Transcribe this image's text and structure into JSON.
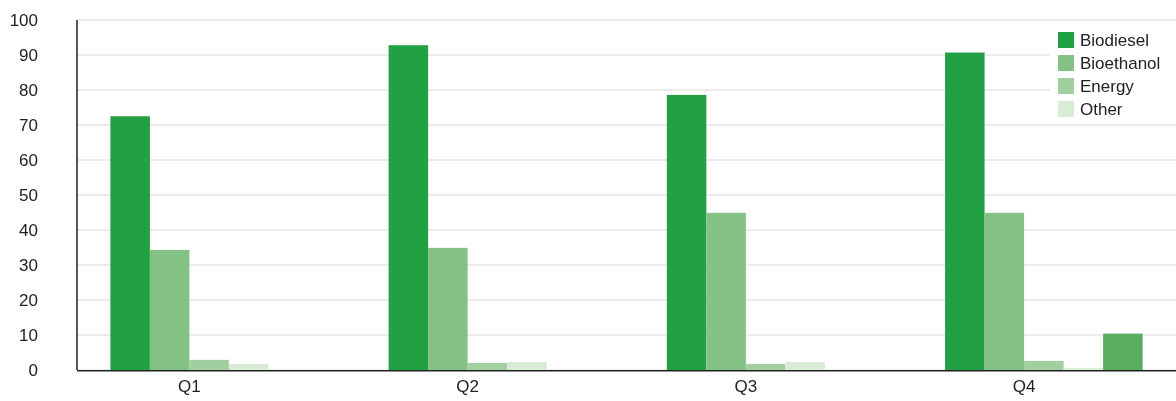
{
  "chart_data": {
    "type": "bar",
    "categories": [
      "Q1",
      "Q2",
      "Q3",
      "Q4"
    ],
    "series": [
      {
        "name": "Biodiesel",
        "color": "#21a144",
        "values": [
          72.5,
          92.8,
          78.6,
          90.7
        ]
      },
      {
        "name": "Bioethanol",
        "color": "#84c185",
        "values": [
          34.3,
          34.9,
          44.9,
          44.9
        ]
      },
      {
        "name": "Energy",
        "color": "#a1cf9f",
        "values": [
          2.9,
          2,
          1.7,
          2.6
        ]
      },
      {
        "name": "Other",
        "color": "#d8ebd5",
        "values": [
          1.7,
          2.3,
          2.3,
          0.6
        ]
      },
      {
        "color": "#58ad5f",
        "values": [
          null,
          null,
          null,
          10.4
        ]
      }
    ],
    "ylim": [
      0,
      100
    ],
    "yticks": [
      0,
      10,
      20,
      30,
      40,
      50,
      60,
      70,
      80,
      90,
      100
    ],
    "grid": "y",
    "legend": "top right"
  }
}
